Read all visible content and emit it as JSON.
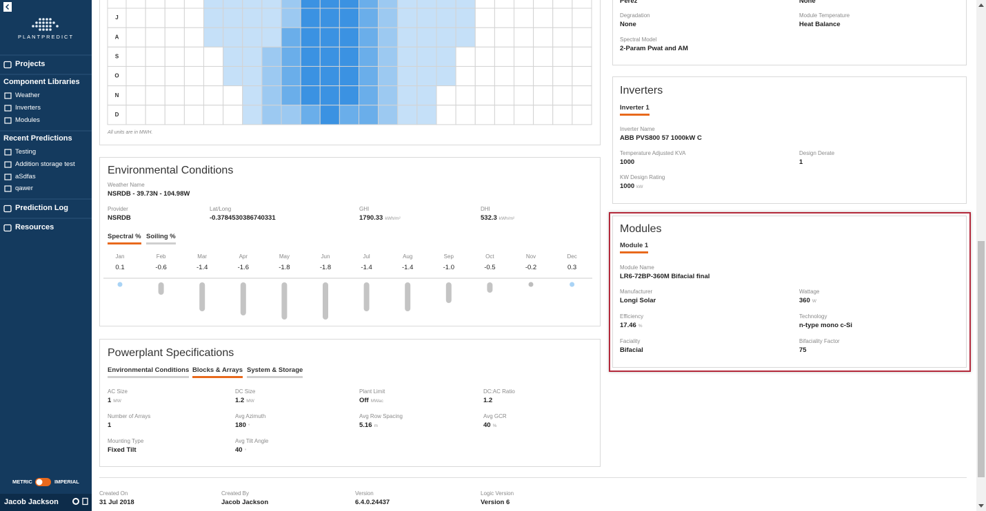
{
  "sidebar": {
    "brand": "PLANTPREDICT",
    "nav": [
      {
        "title": "Projects"
      },
      {
        "title": "Component Libraries",
        "items": [
          "Weather",
          "Inverters",
          "Modules"
        ]
      },
      {
        "title": "Recent Predictions",
        "items": [
          "Testing",
          "Addition storage test",
          "aSdfas",
          "qawer"
        ]
      },
      {
        "title": "Prediction Log"
      },
      {
        "title": "Resources"
      }
    ],
    "units": [
      "METRIC",
      "IMPERIAL"
    ],
    "user": "Jacob Jackson"
  },
  "heatmap": {
    "rows": [
      null,
      "J",
      "A",
      "S",
      "O",
      "N",
      "D"
    ],
    "levels": [
      [
        0,
        0,
        0,
        0,
        1,
        1,
        1,
        1,
        2,
        4,
        4,
        4,
        3,
        2,
        1,
        1,
        1,
        1,
        0,
        0,
        0,
        0,
        0,
        0
      ],
      [
        0,
        0,
        0,
        0,
        1,
        1,
        1,
        1,
        2,
        4,
        4,
        4,
        3,
        2,
        1,
        1,
        1,
        1,
        0,
        0,
        0,
        0,
        0,
        0
      ],
      [
        0,
        0,
        0,
        0,
        1,
        1,
        1,
        1,
        3,
        4,
        4,
        4,
        3,
        2,
        1,
        1,
        1,
        1,
        0,
        0,
        0,
        0,
        0,
        0
      ],
      [
        0,
        0,
        0,
        0,
        0,
        1,
        1,
        2,
        3,
        4,
        4,
        4,
        3,
        2,
        1,
        1,
        1,
        0,
        0,
        0,
        0,
        0,
        0,
        0
      ],
      [
        0,
        0,
        0,
        0,
        0,
        1,
        1,
        2,
        3,
        4,
        4,
        4,
        3,
        2,
        1,
        1,
        1,
        0,
        0,
        0,
        0,
        0,
        0,
        0
      ],
      [
        0,
        0,
        0,
        0,
        0,
        0,
        1,
        2,
        3,
        4,
        4,
        4,
        3,
        2,
        1,
        1,
        0,
        0,
        0,
        0,
        0,
        0,
        0,
        0
      ],
      [
        0,
        0,
        0,
        0,
        0,
        0,
        1,
        2,
        2,
        3,
        4,
        3,
        3,
        2,
        1,
        1,
        0,
        0,
        0,
        0,
        0,
        0,
        0,
        0
      ]
    ],
    "note": "All units are in MWH."
  },
  "environmental": {
    "title": "Environmental Conditions",
    "weather": {
      "label": "Weather Name",
      "value": "NSRDB - 39.73N - 104.98W"
    },
    "fields": [
      {
        "label": "Provider",
        "value": "NSRDB"
      },
      {
        "label": "Lat/Long",
        "value": "-0.3784530386740331"
      },
      {
        "label": "GHI",
        "value": "1790.33",
        "unit": "kWh/m²"
      },
      {
        "label": "DHI",
        "value": "532.3",
        "unit": "kWh/m²"
      }
    ],
    "tabs": [
      "Spectral %",
      "Soiling %"
    ],
    "active_tab": 0,
    "months": [
      "Jan",
      "Feb",
      "Mar",
      "Apr",
      "May",
      "Jun",
      "Jul",
      "Aug",
      "Sep",
      "Oct",
      "Nov",
      "Dec"
    ],
    "values": [
      0.1,
      -0.6,
      -1.4,
      -1.6,
      -1.8,
      -1.8,
      -1.4,
      -1.4,
      -1.0,
      -0.5,
      -0.2,
      0.3
    ],
    "value_labels": [
      "0.1",
      "-0.6",
      "-1.4",
      "-1.6",
      "-1.8",
      "-1.8",
      "-1.4",
      "-1.4",
      "-1.0",
      "-0.5",
      "-0.2",
      "0.3"
    ]
  },
  "powerplant": {
    "title": "Powerplant Specifications",
    "tabs": [
      "Environmental Conditions",
      "Blocks & Arrays",
      "System & Storage"
    ],
    "active_tab": 1,
    "fields": [
      {
        "label": "AC Size",
        "value": "1",
        "unit": "MW"
      },
      {
        "label": "DC Size",
        "value": "1.2",
        "unit": "MW"
      },
      {
        "label": "Plant Limit",
        "value": "Off",
        "unit": "MWac"
      },
      {
        "label": "DC:AC Ratio",
        "value": "1.2"
      },
      {
        "label": "Number of Arrays",
        "value": "1"
      },
      {
        "label": "Avg Azimuth",
        "value": "180",
        "unit": "°"
      },
      {
        "label": "Avg Row Spacing",
        "value": "5.16",
        "unit": "m"
      },
      {
        "label": "Avg GCR",
        "value": "40",
        "unit": "%"
      },
      {
        "label": "Mounting Type",
        "value": "Fixed Tilt"
      },
      {
        "label": "Avg Tilt Angle",
        "value": "40",
        "unit": "°"
      }
    ]
  },
  "footer": [
    {
      "label": "Created On",
      "value": "31 Jul 2018"
    },
    {
      "label": "Created By",
      "value": "Jacob Jackson"
    },
    {
      "label": "Version",
      "value": "6.4.0.24437"
    },
    {
      "label": "Logic Version",
      "value": "Version 6"
    }
  ],
  "losses": {
    "fields": [
      {
        "value": "Perez"
      },
      {
        "value": "None"
      },
      {
        "label": "Degradation",
        "value": "None"
      },
      {
        "label": "Module Temperature",
        "value": "Heat Balance"
      },
      {
        "label": "Spectral Model",
        "value": "2-Param Pwat and AM"
      }
    ]
  },
  "inverters": {
    "title": "Inverters",
    "tabs": [
      "Inverter 1"
    ],
    "active_tab": 0,
    "fields": [
      {
        "label": "Inverter Name",
        "value": "ABB PVS800 57 1000kW C"
      },
      {
        "label": "Temperature Adjusted KVA",
        "value": "1000"
      },
      {
        "label": "Design Derate",
        "value": "1"
      },
      {
        "label": "KW Design Rating",
        "value": "1000",
        "unit": "kW"
      }
    ]
  },
  "modules": {
    "title": "Modules",
    "tabs": [
      "Module 1"
    ],
    "active_tab": 0,
    "fields": [
      {
        "label": "Module Name",
        "value": "LR6-72BP-360M Bifacial final"
      },
      {
        "label": "Manufacturer",
        "value": "Longi Solar"
      },
      {
        "label": "Wattage",
        "value": "360",
        "unit": "W"
      },
      {
        "label": "Efficiency",
        "value": "17.46",
        "unit": "%"
      },
      {
        "label": "Technology",
        "value": "n-type mono c-Si"
      },
      {
        "label": "Faciality",
        "value": "Bifacial"
      },
      {
        "label": "Bifaciality Factor",
        "value": "75"
      }
    ]
  }
}
